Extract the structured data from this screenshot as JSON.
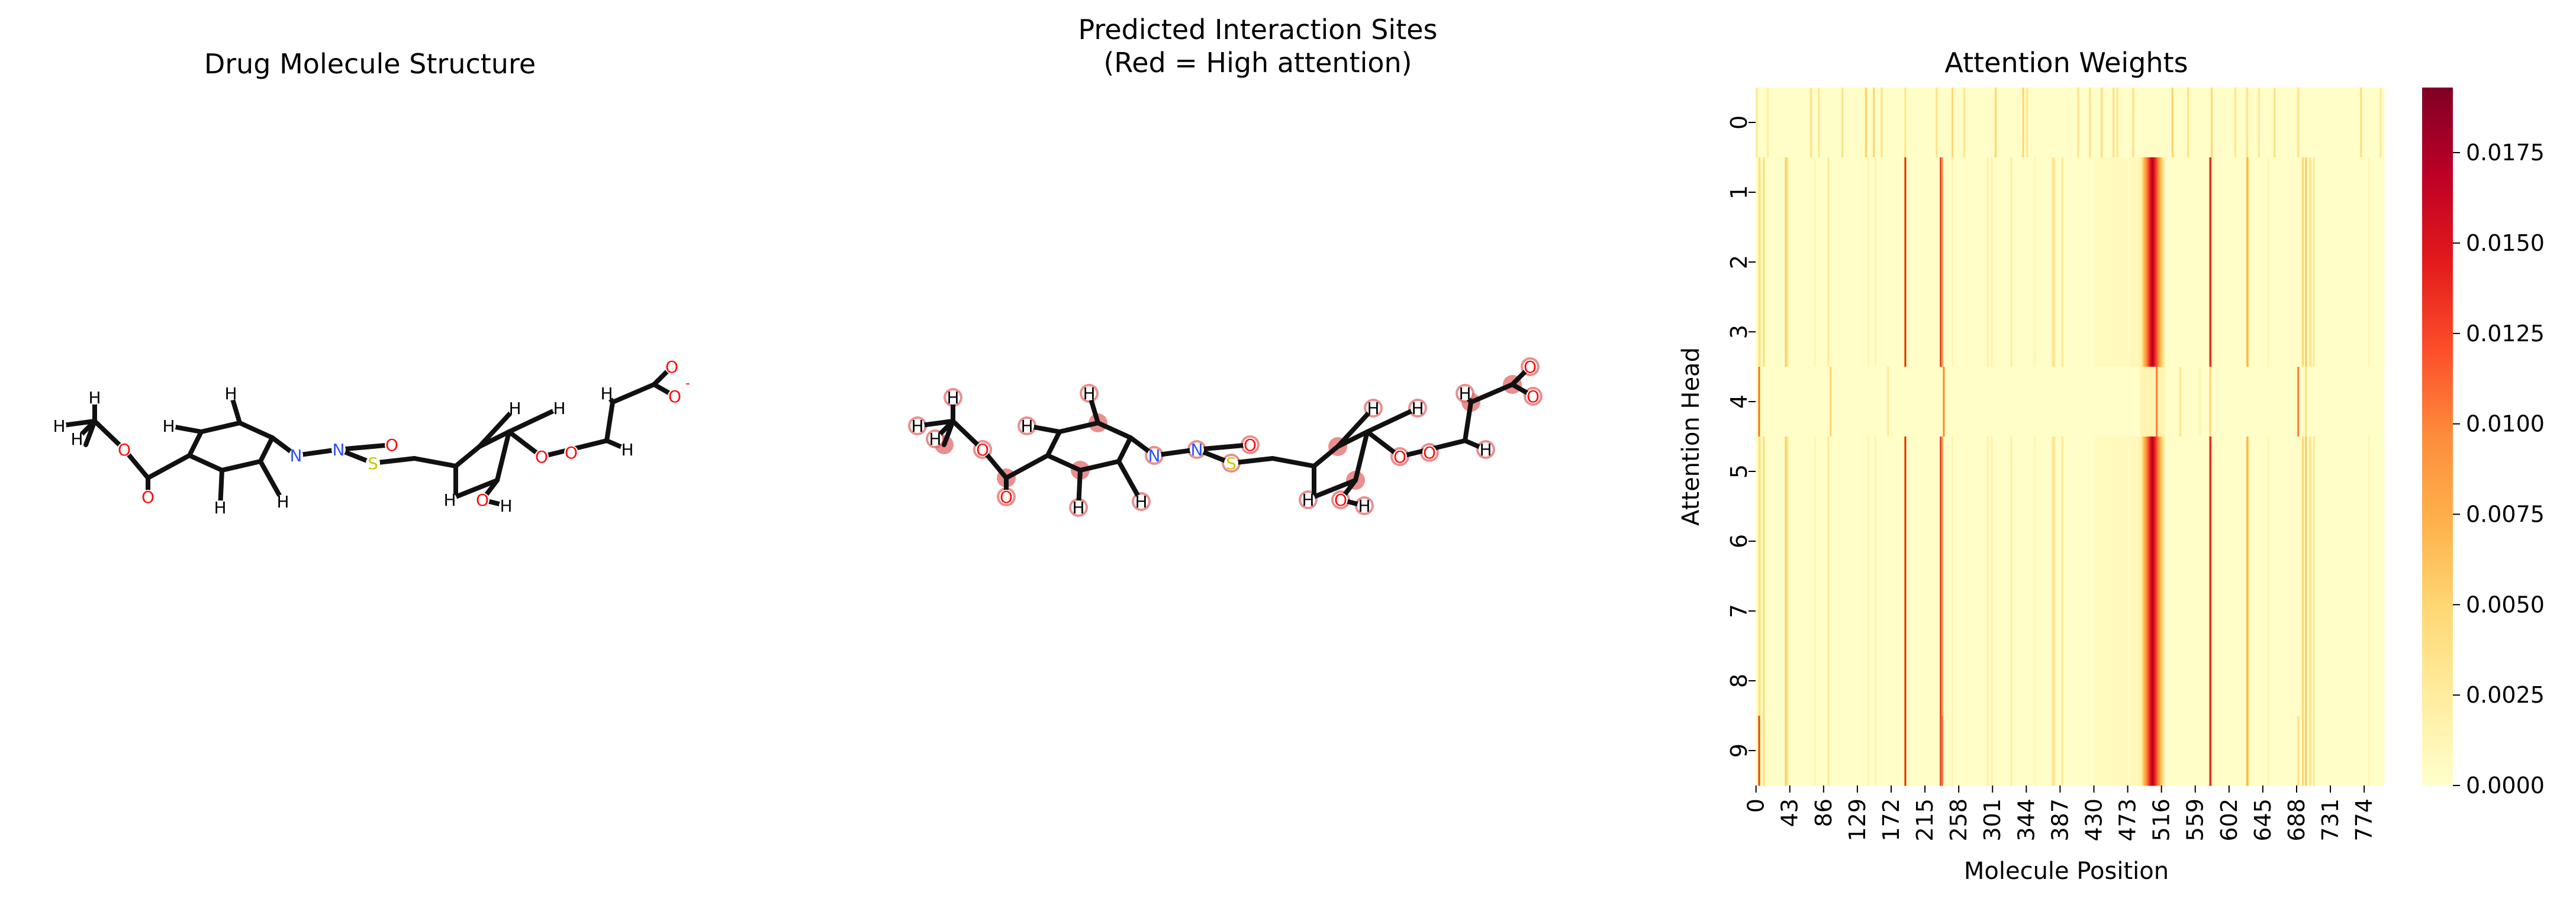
{
  "panels": {
    "left_title": "Drug Molecule Structure",
    "middle_title_line1": "Predicted Interaction Sites",
    "middle_title_line2": "(Red = High attention)",
    "right_title": "Attention Weights"
  },
  "molecule": {
    "labels": {
      "hydrogen": "H",
      "oxygen": "O",
      "nitrogen": "N",
      "sulfur": "S",
      "oxide_anion": "O",
      "minus": "-"
    },
    "colors": {
      "bond": "#111111",
      "oxygen": "#ff0d0d",
      "nitrogen": "#3050f8",
      "sulfur": "#c8c800",
      "highlight": "#e06060"
    }
  },
  "chart_data": {
    "type": "heatmap",
    "title": "Attention Weights",
    "xlabel": "Molecule Position",
    "ylabel": "Attention Head",
    "rows": [
      0,
      1,
      2,
      3,
      4,
      5,
      6,
      7,
      8,
      9
    ],
    "n_positions": 800,
    "x_tick_labels": [
      "0",
      "43",
      "86",
      "129",
      "172",
      "215",
      "258",
      "301",
      "344",
      "387",
      "430",
      "473",
      "516",
      "559",
      "602",
      "645",
      "688",
      "731",
      "774"
    ],
    "colorbar": {
      "min": 0.0,
      "max": 0.0193,
      "ticks": [
        "0.0000",
        "0.0025",
        "0.0050",
        "0.0075",
        "0.0100",
        "0.0125",
        "0.0150",
        "0.0175"
      ],
      "colormap": "YlOrRd"
    },
    "row0_peaks": [
      [
        1,
        0.0035
      ],
      [
        15,
        0.003
      ],
      [
        70,
        0.0045
      ],
      [
        80,
        0.004
      ],
      [
        110,
        0.0045
      ],
      [
        140,
        0.0065
      ],
      [
        150,
        0.006
      ],
      [
        160,
        0.0045
      ],
      [
        190,
        0.004
      ],
      [
        230,
        0.0045
      ],
      [
        250,
        0.0055
      ],
      [
        265,
        0.004
      ],
      [
        305,
        0.006
      ],
      [
        340,
        0.0055
      ],
      [
        345,
        0.004
      ],
      [
        410,
        0.004
      ],
      [
        425,
        0.0045
      ],
      [
        440,
        0.005
      ],
      [
        455,
        0.0045
      ],
      [
        460,
        0.004
      ],
      [
        480,
        0.0045
      ],
      [
        530,
        0.006
      ],
      [
        550,
        0.0045
      ],
      [
        580,
        0.0055
      ],
      [
        610,
        0.004
      ],
      [
        625,
        0.0045
      ],
      [
        640,
        0.0035
      ],
      [
        660,
        0.0045
      ],
      [
        690,
        0.0045
      ],
      [
        770,
        0.005
      ],
      [
        795,
        0.0035
      ]
    ],
    "col_peaks": [
      [
        4,
        0.0045
      ],
      [
        5,
        0.0035
      ],
      [
        10,
        0.005
      ],
      [
        38,
        0.0065
      ],
      [
        40,
        0.004
      ],
      [
        75,
        0.0015
      ],
      [
        92,
        0.0035
      ],
      [
        143,
        0.0018
      ],
      [
        152,
        0.0018
      ],
      [
        190,
        0.0175
      ],
      [
        235,
        0.0155
      ],
      [
        237,
        0.01
      ],
      [
        250,
        0.0018
      ],
      [
        295,
        0.0025
      ],
      [
        300,
        0.002
      ],
      [
        325,
        0.0028
      ],
      [
        355,
        0.0015
      ],
      [
        378,
        0.0045
      ],
      [
        380,
        0.003
      ],
      [
        390,
        0.0035
      ],
      [
        432,
        0.001
      ],
      [
        470,
        0.001
      ],
      [
        490,
        0.002
      ],
      [
        492,
        0.0018
      ],
      [
        492,
        0.002
      ],
      [
        488,
        0.0018
      ],
      [
        490,
        0.0015
      ],
      [
        492,
        0.0016
      ],
      [
        494,
        0.0014
      ],
      [
        496,
        0.0012
      ],
      [
        495,
        0.0012
      ],
      [
        493,
        0.001
      ],
      [
        491,
        0.001
      ],
      [
        489,
        0.001
      ],
      [
        487,
        0.001
      ],
      [
        485,
        0.001
      ],
      [
        491,
        0.0012
      ],
      [
        489,
        0.0012
      ],
      [
        487,
        0.0012
      ],
      [
        485,
        0.0012
      ],
      [
        493,
        0.0012
      ],
      [
        483,
        0.001
      ],
      [
        495,
        0.001
      ],
      [
        497,
        0.001
      ],
      [
        494,
        0.0011
      ],
      [
        492,
        0.0011
      ],
      [
        490,
        0.0011
      ],
      [
        488,
        0.0011
      ],
      [
        486,
        0.0011
      ],
      [
        484,
        0.0011
      ],
      [
        482,
        0.0011
      ],
      [
        480,
        0.0011
      ],
      [
        478,
        0.0011
      ],
      [
        476,
        0.001
      ],
      [
        474,
        0.001
      ],
      [
        472,
        0.001
      ],
      [
        470,
        0.001
      ],
      [
        468,
        0.001
      ],
      [
        466,
        0.001
      ],
      [
        464,
        0.001
      ],
      [
        462,
        0.001
      ],
      [
        460,
        0.001
      ],
      [
        458,
        0.001
      ],
      [
        456,
        0.001
      ],
      [
        454,
        0.001
      ],
      [
        452,
        0.001
      ],
      [
        450,
        0.001
      ],
      [
        448,
        0.001
      ],
      [
        446,
        0.001
      ],
      [
        444,
        0.001
      ],
      [
        442,
        0.001
      ],
      [
        440,
        0.001
      ],
      [
        438,
        0.001
      ],
      [
        436,
        0.001
      ],
      [
        434,
        0.001
      ],
      [
        492,
        0.0048
      ],
      [
        493,
        0.0058
      ],
      [
        494,
        0.0068
      ],
      [
        495,
        0.0078
      ],
      [
        496,
        0.0088
      ],
      [
        497,
        0.0098
      ],
      [
        498,
        0.0108
      ],
      [
        499,
        0.0118
      ],
      [
        500,
        0.0128
      ],
      [
        501,
        0.0138
      ],
      [
        502,
        0.0148
      ],
      [
        503,
        0.0158
      ],
      [
        504,
        0.0168
      ],
      [
        505,
        0.0168
      ],
      [
        506,
        0.0158
      ],
      [
        507,
        0.0148
      ],
      [
        508,
        0.0138
      ],
      [
        509,
        0.0128
      ],
      [
        510,
        0.0118
      ],
      [
        511,
        0.0108
      ],
      [
        512,
        0.0098
      ],
      [
        513,
        0.0088
      ],
      [
        514,
        0.0078
      ],
      [
        515,
        0.0068
      ],
      [
        516,
        0.0058
      ],
      [
        517,
        0.0048
      ],
      [
        518,
        0.0038
      ],
      [
        519,
        0.0028
      ],
      [
        520,
        0.0018
      ],
      [
        578,
        0.0165
      ],
      [
        579,
        0.012
      ],
      [
        625,
        0.008
      ],
      [
        626,
        0.0065
      ],
      [
        652,
        0.0015
      ],
      [
        696,
        0.0058
      ],
      [
        700,
        0.007
      ],
      [
        705,
        0.0045
      ],
      [
        710,
        0.0035
      ],
      [
        780,
        0.0015
      ]
    ],
    "head4_peaks": [
      [
        4,
        0.0125
      ],
      [
        95,
        0.0055
      ],
      [
        168,
        0.0035
      ],
      [
        239,
        0.011
      ],
      [
        490,
        0.0015
      ],
      [
        491,
        0.0015
      ],
      [
        492,
        0.0015
      ],
      [
        493,
        0.0015
      ],
      [
        494,
        0.0015
      ],
      [
        495,
        0.0015
      ],
      [
        496,
        0.0015
      ],
      [
        497,
        0.0015
      ],
      [
        498,
        0.0015
      ],
      [
        499,
        0.0015
      ],
      [
        500,
        0.0015
      ],
      [
        501,
        0.0015
      ],
      [
        502,
        0.0015
      ],
      [
        503,
        0.0015
      ],
      [
        504,
        0.0015
      ],
      [
        505,
        0.0015
      ],
      [
        506,
        0.0015
      ],
      [
        507,
        0.0015
      ],
      [
        508,
        0.0015
      ],
      [
        509,
        0.0015
      ],
      [
        510,
        0.0015
      ],
      [
        511,
        0.0015
      ],
      [
        512,
        0.0015
      ],
      [
        513,
        0.0015
      ],
      [
        514,
        0.0015
      ],
      [
        515,
        0.0015
      ],
      [
        516,
        0.0015
      ],
      [
        517,
        0.0015
      ],
      [
        518,
        0.0015
      ],
      [
        519,
        0.0015
      ],
      [
        520,
        0.0015
      ],
      [
        490,
        0.0015
      ],
      [
        510,
        0.012
      ],
      [
        540,
        0.004
      ],
      [
        565,
        0.0015
      ],
      [
        578,
        0.0055
      ],
      [
        690,
        0.012
      ],
      [
        700,
        0.0045
      ]
    ],
    "head9_peaks": [
      [
        4,
        0.0155
      ],
      [
        38,
        0.0065
      ],
      [
        237,
        0.0125
      ],
      [
        510,
        0.0075
      ],
      [
        690,
        0.0045
      ]
    ]
  }
}
